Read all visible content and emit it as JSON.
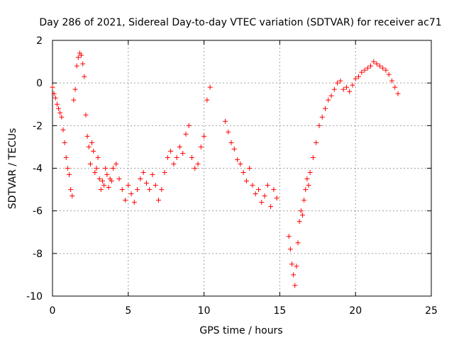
{
  "chart_data": {
    "type": "scatter",
    "title": "Day 286 of 2021, Sidereal Day-to-day VTEC variation (SDTVAR) for receiver ac71",
    "xlabel": "GPS time / hours",
    "ylabel": "SDTVAR / TECUs",
    "xlim": [
      0,
      25
    ],
    "ylim": [
      -10,
      2
    ],
    "xticks": [
      "0",
      "5",
      "10",
      "15",
      "20",
      "25"
    ],
    "yticks": [
      "2",
      "0",
      "-2",
      "-4",
      "-6",
      "-8",
      "-10"
    ],
    "grid": true,
    "marker": "+",
    "series": [
      {
        "name": "SDTVAR",
        "color": "#ff0000",
        "x": [
          0.0,
          0.1,
          0.2,
          0.3,
          0.4,
          0.5,
          0.6,
          0.7,
          0.8,
          0.9,
          1.0,
          1.1,
          1.2,
          1.3,
          1.4,
          1.5,
          1.6,
          1.7,
          1.8,
          1.9,
          2.0,
          2.1,
          2.2,
          2.3,
          2.4,
          2.5,
          2.6,
          2.7,
          2.8,
          2.9,
          3.0,
          3.1,
          3.2,
          3.3,
          3.4,
          3.5,
          3.6,
          3.7,
          3.8,
          3.9,
          4.0,
          4.2,
          4.4,
          4.6,
          4.8,
          5.0,
          5.2,
          5.4,
          5.6,
          5.8,
          6.0,
          6.2,
          6.4,
          6.6,
          6.8,
          7.0,
          7.2,
          7.4,
          7.6,
          7.8,
          8.0,
          8.2,
          8.4,
          8.6,
          8.8,
          9.0,
          9.2,
          9.4,
          9.6,
          9.8,
          10.0,
          10.2,
          10.4,
          11.4,
          11.6,
          11.8,
          12.0,
          12.2,
          12.4,
          12.6,
          12.8,
          13.0,
          13.2,
          13.4,
          13.6,
          13.8,
          14.0,
          14.2,
          14.4,
          14.6,
          14.8,
          15.6,
          15.7,
          15.8,
          15.9,
          16.0,
          16.1,
          16.2,
          16.3,
          16.4,
          16.5,
          16.6,
          16.7,
          16.8,
          16.9,
          17.0,
          17.2,
          17.4,
          17.6,
          17.8,
          18.0,
          18.2,
          18.4,
          18.6,
          18.8,
          19.0,
          19.2,
          19.4,
          19.6,
          19.8,
          20.0,
          20.2,
          20.4,
          20.6,
          20.8,
          21.0,
          21.2,
          21.4,
          21.6,
          21.8,
          22.0,
          22.2,
          22.4,
          22.6,
          22.8
        ],
        "y": [
          -0.2,
          -0.5,
          -0.7,
          -1.0,
          -1.2,
          -1.4,
          -1.6,
          -2.2,
          -2.8,
          -3.5,
          -4.0,
          -4.3,
          -5.0,
          -5.3,
          -0.8,
          -0.3,
          0.8,
          1.2,
          1.4,
          1.3,
          0.9,
          0.3,
          -1.5,
          -2.5,
          -3.0,
          -3.8,
          -2.8,
          -3.2,
          -4.2,
          -4.0,
          -3.5,
          -4.5,
          -5.0,
          -4.6,
          -4.8,
          -4.0,
          -4.3,
          -4.9,
          -4.5,
          -4.6,
          -4.0,
          -3.8,
          -4.5,
          -5.0,
          -5.5,
          -4.8,
          -5.2,
          -5.6,
          -5.0,
          -4.5,
          -4.2,
          -4.7,
          -5.0,
          -4.3,
          -4.8,
          -5.5,
          -5.0,
          -4.2,
          -3.5,
          -3.2,
          -3.8,
          -3.5,
          -3.0,
          -3.3,
          -2.4,
          -2.0,
          -3.5,
          -4.0,
          -3.8,
          -3.0,
          -2.5,
          -0.8,
          -0.2,
          -1.8,
          -2.3,
          -2.8,
          -3.1,
          -3.6,
          -3.8,
          -4.2,
          -4.6,
          -4.0,
          -4.8,
          -5.2,
          -5.0,
          -5.6,
          -5.3,
          -4.8,
          -5.8,
          -5.0,
          -5.4,
          -7.2,
          -7.8,
          -8.5,
          -9.0,
          -9.5,
          -8.6,
          -7.5,
          -6.5,
          -6.0,
          -6.2,
          -5.5,
          -5.0,
          -4.5,
          -4.8,
          -4.2,
          -3.5,
          -2.8,
          -2.0,
          -1.6,
          -1.2,
          -0.8,
          -0.6,
          -0.3,
          0.0,
          0.1,
          -0.3,
          -0.2,
          -0.4,
          -0.1,
          0.2,
          0.3,
          0.5,
          0.6,
          0.7,
          0.8,
          1.0,
          0.9,
          0.8,
          0.7,
          0.6,
          0.4,
          0.1,
          -0.2,
          -0.5
        ]
      }
    ]
  }
}
